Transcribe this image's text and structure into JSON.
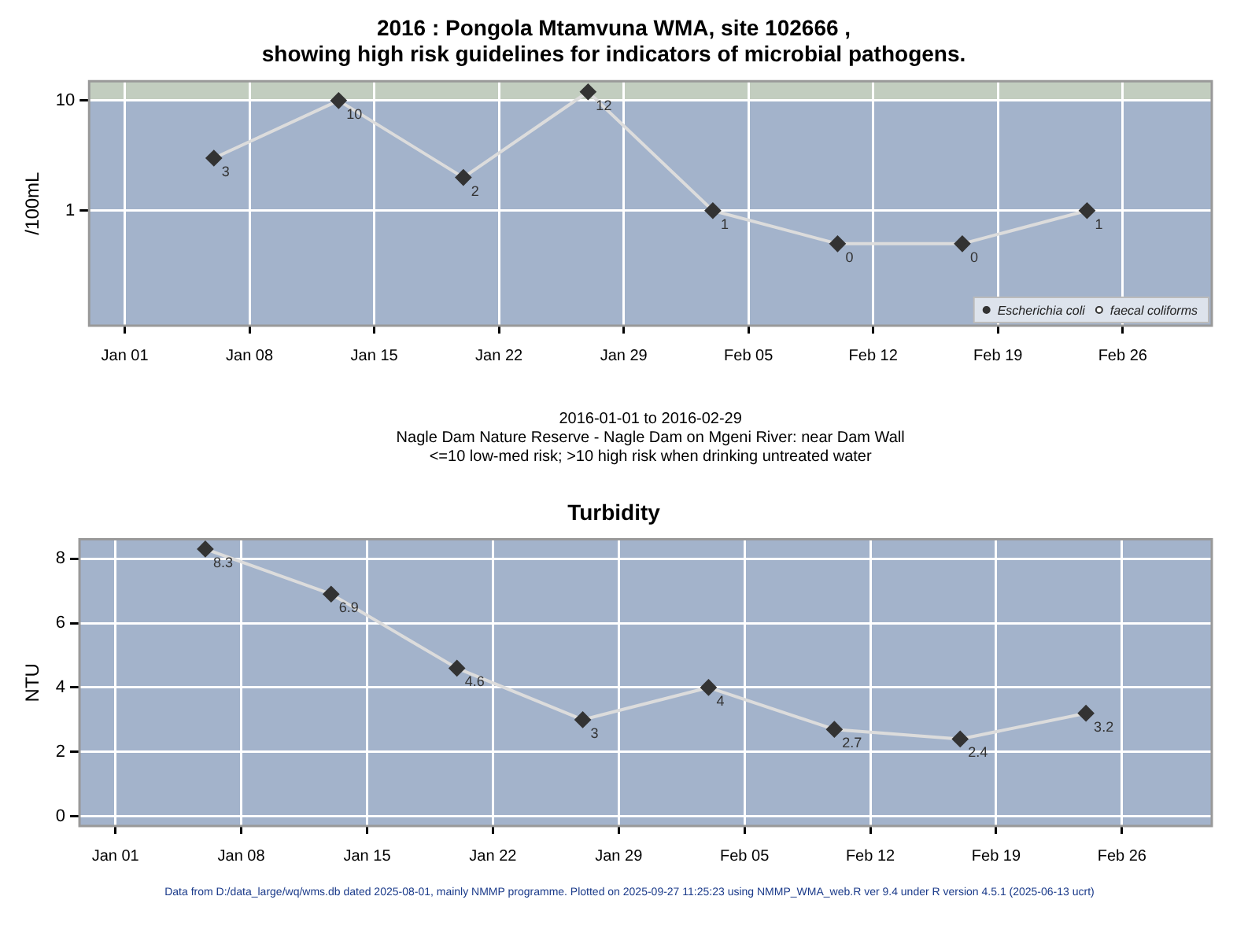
{
  "chart_data": [
    {
      "type": "line",
      "title": "2016 : Pongola Mtamvuna WMA, site 102666 ,\nshowing high risk guidelines for indicators of microbial pathogens.",
      "xlabel": "2016-01-01 to 2016-02-29\nNagle Dam Nature Reserve - Nagle Dam on Mgeni River: near Dam Wall\n<=10 low-med risk; >10 high risk when drinking untreated water",
      "ylabel": "/100mL",
      "x": [
        "2016-01-06",
        "2016-01-13",
        "2016-01-20",
        "2016-01-27",
        "2016-02-03",
        "2016-02-10",
        "2016-02-17",
        "2016-02-24"
      ],
      "series": [
        {
          "name": "Escherichia coli",
          "color": "#333333",
          "marker": "diamond",
          "values": [
            3,
            10,
            2,
            12,
            1,
            0.5,
            0.5,
            1
          ],
          "value_labels": [
            "3",
            "10",
            "2",
            "12",
            "1",
            "0",
            "0",
            "1"
          ]
        },
        {
          "name": "faecal coliforms",
          "color": "#333333",
          "marker": "circle",
          "values": [
            null,
            null,
            null,
            null,
            null,
            null,
            null,
            null
          ]
        }
      ],
      "log": "y",
      "xlim": [
        "2015-12-30",
        "2016-03-02"
      ],
      "xticks": [
        {
          "value": "2016-01-01",
          "label": "Jan 01"
        },
        {
          "value": "2016-01-08",
          "label": "Jan 08"
        },
        {
          "value": "2016-01-15",
          "label": "Jan 15"
        },
        {
          "value": "2016-01-22",
          "label": "Jan 22"
        },
        {
          "value": "2016-01-29",
          "label": "Jan 29"
        },
        {
          "value": "2016-02-05",
          "label": "Feb 05"
        },
        {
          "value": "2016-02-12",
          "label": "Feb 12"
        },
        {
          "value": "2016-02-19",
          "label": "Feb 19"
        },
        {
          "value": "2016-02-26",
          "label": "Feb 26"
        }
      ],
      "ylim": [
        0.09,
        15
      ],
      "yticks": [
        1,
        10
      ],
      "bands": [
        {
          "axis": "y",
          "from": 10,
          "to": 15,
          "color": "#c2cdbf"
        }
      ],
      "grid": true,
      "legend": "bottom right"
    },
    {
      "type": "line",
      "title": "Turbidity",
      "ylabel": "NTU",
      "x": [
        "2016-01-06",
        "2016-01-13",
        "2016-01-20",
        "2016-01-27",
        "2016-02-03",
        "2016-02-10",
        "2016-02-17",
        "2016-02-24"
      ],
      "series": [
        {
          "color": "#333333",
          "marker": "diamond",
          "values": [
            8.3,
            6.9,
            4.6,
            3,
            4,
            2.7,
            2.4,
            3.2
          ]
        }
      ],
      "data_labels": true,
      "xlim": [
        "2015-12-30",
        "2016-03-02"
      ],
      "xticks": [
        {
          "value": "2016-01-01",
          "label": "Jan 01"
        },
        {
          "value": "2016-01-08",
          "label": "Jan 08"
        },
        {
          "value": "2016-01-15",
          "label": "Jan 15"
        },
        {
          "value": "2016-01-22",
          "label": "Jan 22"
        },
        {
          "value": "2016-01-29",
          "label": "Jan 29"
        },
        {
          "value": "2016-02-05",
          "label": "Feb 05"
        },
        {
          "value": "2016-02-12",
          "label": "Feb 12"
        },
        {
          "value": "2016-02-19",
          "label": "Feb 19"
        },
        {
          "value": "2016-02-26",
          "label": "Feb 26"
        }
      ],
      "ylim": [
        -0.3,
        8.6
      ],
      "yticks": [
        0,
        2,
        4,
        6,
        8
      ],
      "grid": true,
      "annotations": [
        "Data from D:/data_large/wq/wms.db dated 2025-08-01, mainly NMMP programme. Plotted on 2025-09-27 11:25:23 using NMMP_WMA_web.R ver 9.4 under R version 4.5.1 (2025-06-13 ucrt)"
      ]
    }
  ]
}
